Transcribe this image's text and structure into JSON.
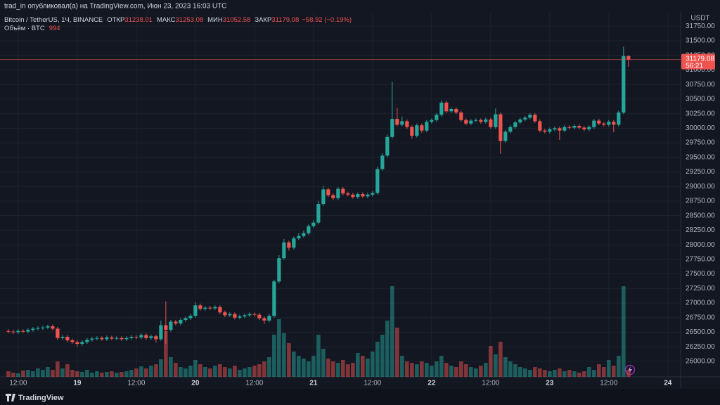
{
  "header": {
    "publisher": "trad_in опубликовал(а) на TradingView.com, Июн 23, 2023 16:03 UTC"
  },
  "footer": {
    "brand": "TradingView"
  },
  "chart_data": {
    "type": "candlestick",
    "title": "Bitcoin / TetherUS, 1Ч, BINANCE",
    "open_label": "ОТКР",
    "high_label": "МАКС",
    "low_label": "МИН",
    "close_label": "ЗАКР",
    "change": "−58.92 (−0.19%)",
    "volume_label": "Объём · BTC",
    "y_axis_title": "USDT",
    "countdown": "56:21",
    "up_color": "#26a69a",
    "down_color": "#ef5350",
    "grid": true,
    "ylim": [
      25733,
      31983
    ],
    "yticks": [
      {
        "value": 26000,
        "label": "26000.00"
      },
      {
        "value": 26250,
        "label": "26250.00"
      },
      {
        "value": 26500,
        "label": "26500.00"
      },
      {
        "value": 26750,
        "label": "26750.00"
      },
      {
        "value": 27000,
        "label": "27000.00"
      },
      {
        "value": 27250,
        "label": "27250.00"
      },
      {
        "value": 27500,
        "label": "27500.00"
      },
      {
        "value": 27750,
        "label": "27750.00"
      },
      {
        "value": 28000,
        "label": "28000.00"
      },
      {
        "value": 28250,
        "label": "28250.00"
      },
      {
        "value": 28500,
        "label": "28500.00"
      },
      {
        "value": 28750,
        "label": "28750.00"
      },
      {
        "value": 29000,
        "label": "29000.00"
      },
      {
        "value": 29250,
        "label": "29250.00"
      },
      {
        "value": 29500,
        "label": "29500.00"
      },
      {
        "value": 29750,
        "label": "29750.00"
      },
      {
        "value": 30000,
        "label": "30000.00"
      },
      {
        "value": 30250,
        "label": "30250.00"
      },
      {
        "value": 30500,
        "label": "30500.00"
      },
      {
        "value": 30750,
        "label": "30750.00"
      },
      {
        "value": 31000,
        "label": "31000.00"
      },
      {
        "value": 31250,
        "label": "31250.00"
      },
      {
        "value": 31500,
        "label": "31500.00"
      },
      {
        "value": 31750,
        "label": "31750.00"
      }
    ],
    "xlim": [
      -1.7,
      136.6
    ],
    "xticks": [
      {
        "value": 2,
        "label": "12:00"
      },
      {
        "value": 14,
        "label": "19"
      },
      {
        "value": 26,
        "label": "12:00"
      },
      {
        "value": 38,
        "label": "20"
      },
      {
        "value": 50,
        "label": "12:00"
      },
      {
        "value": 62,
        "label": "21"
      },
      {
        "value": 74,
        "label": "12:00"
      },
      {
        "value": 86,
        "label": "22"
      },
      {
        "value": 98,
        "label": "12:00"
      },
      {
        "value": 110,
        "label": "23"
      },
      {
        "value": 122,
        "label": "12:00"
      },
      {
        "value": 134,
        "label": "24"
      }
    ],
    "open": [
      26520,
      26510,
      26500,
      26520,
      26510,
      26540,
      26560,
      26570,
      26580,
      26600,
      26560,
      26400,
      26420,
      26360,
      26330,
      26300,
      26330,
      26370,
      26390,
      26400,
      26380,
      26410,
      26390,
      26400,
      26380,
      26400,
      26420,
      26410,
      26450,
      26400,
      26430,
      26380,
      26620,
      26540,
      26680,
      26650,
      26710,
      26740,
      26780,
      26960,
      26900,
      26920,
      26910,
      26930,
      26840,
      26790,
      26810,
      26750,
      26770,
      26790,
      26810,
      26800,
      26740,
      26700,
      26780,
      27370,
      27770,
      28040,
      27950,
      28110,
      28150,
      28200,
      28320,
      28380,
      28700,
      28950,
      28850,
      28800,
      28960,
      28880,
      28860,
      28820,
      28870,
      28830,
      28860,
      28890,
      29300,
      29530,
      29850,
      30160,
      30060,
      30120,
      30020,
      29870,
      30050,
      29960,
      30110,
      30140,
      30230,
      30440,
      30290,
      30330,
      30270,
      30140,
      30080,
      30130,
      30140,
      30110,
      30150,
      30020,
      30240,
      29780,
      29940,
      30020,
      30100,
      30150,
      30180,
      30230,
      30120,
      29960,
      29940,
      29980,
      30000,
      29960,
      30020,
      30010,
      30040,
      30010,
      29980,
      30020,
      30130,
      30080,
      30060,
      30110,
      30060,
      30270,
      31238.01
    ],
    "high": [
      26550,
      26540,
      26550,
      26550,
      26570,
      26590,
      26600,
      26610,
      26630,
      26630,
      26590,
      26450,
      26450,
      26390,
      26360,
      26360,
      26400,
      26420,
      26430,
      26430,
      26440,
      26440,
      26430,
      26430,
      26430,
      26450,
      26450,
      26480,
      26480,
      26460,
      26460,
      26700,
      27030,
      26710,
      26710,
      26740,
      26770,
      26810,
      27010,
      26990,
      26950,
      26950,
      26960,
      26960,
      26870,
      26840,
      26840,
      26800,
      26820,
      26840,
      26840,
      26830,
      26770,
      26810,
      27400,
      27820,
      28100,
      28070,
      28140,
      28200,
      28240,
      28350,
      28420,
      28750,
      29010,
      28980,
      28880,
      28990,
      28990,
      28910,
      28890,
      28900,
      28900,
      28890,
      28920,
      29340,
      29570,
      29890,
      30800,
      30350,
      30200,
      30150,
      30050,
      30080,
      30080,
      30140,
      30170,
      30260,
      30480,
      30470,
      30360,
      30360,
      30300,
      30170,
      30160,
      30170,
      30170,
      30180,
      30180,
      30340,
      30270,
      29970,
      30050,
      30130,
      30180,
      30210,
      30260,
      30260,
      30150,
      29990,
      30010,
      30030,
      30030,
      30050,
      30050,
      30070,
      30070,
      30040,
      30050,
      30160,
      30160,
      30110,
      30140,
      30140,
      30300,
      31400,
      31253.08
    ],
    "low": [
      26480,
      26470,
      26470,
      26480,
      26480,
      26510,
      26530,
      26540,
      26550,
      26530,
      26370,
      26370,
      26330,
      26300,
      26250,
      26270,
      26300,
      26340,
      26360,
      26350,
      26350,
      26360,
      26360,
      26350,
      26350,
      26370,
      26380,
      26380,
      26370,
      26370,
      26320,
      26350,
      26300,
      26510,
      26620,
      26620,
      26680,
      26710,
      26750,
      26870,
      26870,
      26880,
      26880,
      26810,
      26760,
      26760,
      26720,
      26720,
      26740,
      26760,
      26770,
      26710,
      26640,
      26670,
      26750,
      27340,
      27740,
      27900,
      27920,
      28080,
      28120,
      28170,
      28290,
      28350,
      28670,
      28820,
      28770,
      28770,
      28850,
      28830,
      28790,
      28790,
      28800,
      28800,
      28830,
      28860,
      29270,
      29500,
      29820,
      30030,
      30030,
      29990,
      29820,
      29840,
      29920,
      29930,
      30080,
      30110,
      30200,
      30260,
      30260,
      30240,
      30110,
      30050,
      30050,
      30100,
      30080,
      30080,
      29990,
      29990,
      29560,
      29750,
      29910,
      29990,
      30070,
      30120,
      30150,
      30090,
      29930,
      29910,
      29910,
      29950,
      29800,
      29930,
      29980,
      29980,
      29980,
      29950,
      29950,
      29990,
      30050,
      30030,
      30030,
      29930,
      30030,
      30240,
      31052.58
    ],
    "close": [
      26510,
      26500,
      26520,
      26510,
      26540,
      26560,
      26570,
      26580,
      26600,
      26560,
      26400,
      26420,
      26360,
      26330,
      26300,
      26330,
      26370,
      26390,
      26400,
      26380,
      26410,
      26390,
      26400,
      26380,
      26400,
      26420,
      26410,
      26450,
      26400,
      26430,
      26380,
      26620,
      26540,
      26680,
      26650,
      26710,
      26740,
      26780,
      26960,
      26900,
      26920,
      26910,
      26930,
      26840,
      26790,
      26810,
      26750,
      26770,
      26790,
      26810,
      26800,
      26740,
      26700,
      26780,
      27370,
      27770,
      28040,
      27950,
      28110,
      28150,
      28200,
      28320,
      28380,
      28700,
      28950,
      28850,
      28800,
      28960,
      28880,
      28860,
      28820,
      28870,
      28830,
      28860,
      28890,
      29300,
      29530,
      29850,
      30160,
      30060,
      30120,
      30020,
      29870,
      30050,
      29960,
      30110,
      30140,
      30230,
      30440,
      30290,
      30330,
      30270,
      30140,
      30080,
      30130,
      30140,
      30110,
      30150,
      30020,
      30240,
      29780,
      29940,
      30020,
      30100,
      30150,
      30180,
      30230,
      30120,
      29960,
      29940,
      29980,
      30000,
      29960,
      30020,
      30010,
      30040,
      30010,
      29980,
      30020,
      30130,
      30080,
      30060,
      30110,
      30060,
      30270,
      31238.01,
      31179.08
    ],
    "volume": [
      800,
      600,
      500,
      900,
      1000,
      800,
      1200,
      1000,
      1400,
      1000,
      2200,
      1200,
      1800,
      1000,
      800,
      700,
      1000,
      600,
      800,
      600,
      700,
      800,
      600,
      700,
      800,
      1000,
      1200,
      1500,
      1200,
      1600,
      1800,
      2500,
      6500,
      2800,
      2000,
      1400,
      1200,
      1600,
      2400,
      1800,
      1400,
      1200,
      1600,
      1800,
      1400,
      1200,
      1600,
      1000,
      1200,
      1400,
      1600,
      1800,
      2200,
      2800,
      6000,
      8200,
      6200,
      4800,
      3600,
      3000,
      2600,
      2200,
      3000,
      6000,
      4000,
      2600,
      2200,
      2000,
      2400,
      1800,
      2000,
      3400,
      3000,
      2600,
      3600,
      5000,
      6000,
      8000,
      12900,
      7000,
      3000,
      2200,
      2000,
      1800,
      2200,
      2000,
      1600,
      2200,
      3000,
      2000,
      1600,
      1400,
      2200,
      1800,
      1400,
      1200,
      1600,
      2000,
      4400,
      3200,
      5000,
      2800,
      2200,
      1800,
      1400,
      1200,
      1000,
      1400,
      1200,
      1000,
      800,
      1000,
      1200,
      800,
      1000,
      800,
      600,
      800,
      1400,
      1000,
      1800,
      1400,
      2400,
      1600,
      3000,
      12900,
      994
    ]
  }
}
